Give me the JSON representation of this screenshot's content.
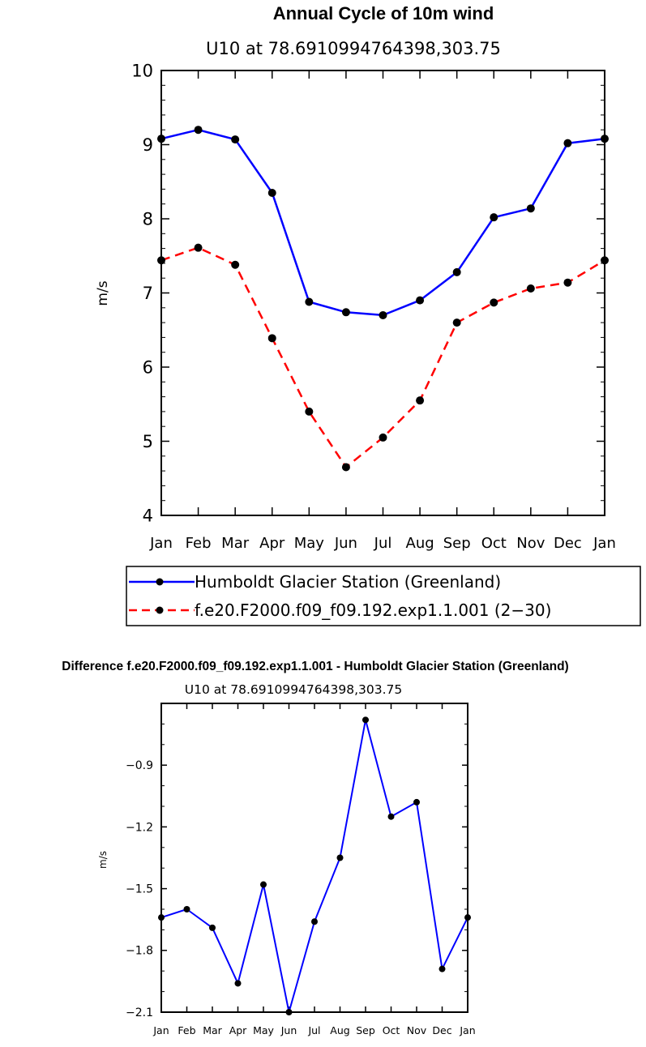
{
  "chart_data": [
    {
      "type": "line",
      "title": "Annual Cycle of 10m wind",
      "subtitle": "U10 at 78.6910994764398,303.75",
      "ylabel": "m/s",
      "xlabel": "",
      "ylim": [
        4,
        10
      ],
      "yticks": [
        4,
        5,
        6,
        7,
        8,
        9,
        10
      ],
      "ytick_labels": [
        "4",
        "5",
        "6",
        "7",
        "8",
        "9",
        "10"
      ],
      "categories": [
        "Jan",
        "Feb",
        "Mar",
        "Apr",
        "May",
        "Jun",
        "Jul",
        "Aug",
        "Sep",
        "Oct",
        "Nov",
        "Dec",
        "Jan"
      ],
      "grid": false,
      "legend_position": "bottom",
      "series": [
        {
          "name": "Humboldt Glacier Station (Greenland)",
          "color": "#0000ff",
          "dash": "solid",
          "values": [
            9.08,
            9.2,
            9.07,
            8.35,
            6.88,
            6.74,
            6.7,
            6.9,
            7.28,
            8.02,
            8.14,
            9.02,
            9.08
          ]
        },
        {
          "name": "f.e20.F2000.f09_f09.192.exp1.1.001 (2−30)",
          "color": "#ff0000",
          "dash": "dashed",
          "values": [
            7.44,
            7.61,
            7.38,
            6.39,
            5.4,
            4.65,
            5.05,
            5.55,
            6.6,
            6.87,
            7.06,
            7.14,
            7.44
          ]
        }
      ]
    },
    {
      "type": "line",
      "title": "Difference f.e20.F2000.f09_f09.192.exp1.1.001 - Humboldt Glacier Station (Greenland)",
      "subtitle": "U10 at 78.6910994764398,303.75",
      "ylabel": "m/s",
      "xlabel": "",
      "ylim": [
        -2.1,
        -0.6
      ],
      "yticks": [
        -2.1,
        -1.8,
        -1.5,
        -1.2,
        -0.9
      ],
      "ytick_labels": [
        "−2.1",
        "−1.8",
        "−1.5",
        "−1.2",
        "−0.9"
      ],
      "categories": [
        "Jan",
        "Feb",
        "Mar",
        "Apr",
        "May",
        "Jun",
        "Jul",
        "Aug",
        "Sep",
        "Oct",
        "Nov",
        "Dec",
        "Jan"
      ],
      "grid": false,
      "series": [
        {
          "name": "Difference",
          "color": "#0000ff",
          "dash": "solid",
          "values": [
            -1.64,
            -1.6,
            -1.69,
            -1.96,
            -1.48,
            -2.1,
            -1.66,
            -1.35,
            -0.68,
            -1.15,
            -1.08,
            -1.89,
            -1.64
          ]
        }
      ]
    }
  ]
}
